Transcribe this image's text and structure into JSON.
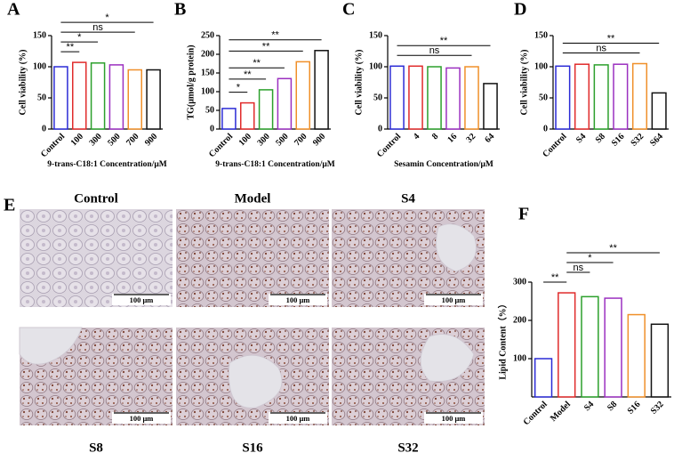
{
  "chart_data": [
    {
      "type": "bar",
      "label": "A",
      "ylabel": "Cell viability (%)",
      "xlabel": "9-trans-C18:1 Concentration/μM",
      "categories": [
        "Control",
        "100",
        "300",
        "500",
        "700",
        "900"
      ],
      "values": [
        100,
        107,
        106,
        103,
        95,
        95
      ],
      "colors": [
        "#2b2bd6",
        "#e02b2b",
        "#2ca02c",
        "#9b30c0",
        "#f0902a",
        "#111111"
      ],
      "ylim": [
        0,
        150
      ],
      "yticks": [
        0,
        50,
        100,
        150
      ],
      "annotations": [
        "**",
        "*",
        "ns",
        "*"
      ]
    },
    {
      "type": "bar",
      "label": "B",
      "ylabel": "TG(μmol/g protein)",
      "xlabel": "9-trans-C18:1 Concentration/μM",
      "categories": [
        "Control",
        "100",
        "300",
        "500",
        "700",
        "900"
      ],
      "values": [
        55,
        70,
        105,
        135,
        180,
        210
      ],
      "colors": [
        "#2b2bd6",
        "#e02b2b",
        "#2ca02c",
        "#9b30c0",
        "#f0902a",
        "#111111"
      ],
      "ylim": [
        0,
        250
      ],
      "yticks": [
        0,
        50,
        100,
        150,
        200,
        250
      ],
      "annotations": [
        "*",
        "**",
        "**",
        "**",
        "**"
      ]
    },
    {
      "type": "bar",
      "label": "C",
      "ylabel": "Cell viability (%)",
      "xlabel": "Sesamin Concentration/μM",
      "categories": [
        "Control",
        "4",
        "8",
        "16",
        "32",
        "64"
      ],
      "values": [
        101,
        101,
        100,
        98,
        100,
        73
      ],
      "colors": [
        "#2b2bd6",
        "#e02b2b",
        "#2ca02c",
        "#9b30c0",
        "#f0902a",
        "#111111"
      ],
      "ylim": [
        0,
        150
      ],
      "yticks": [
        0,
        50,
        100,
        150
      ],
      "annotations": [
        "ns",
        "**"
      ]
    },
    {
      "type": "bar",
      "label": "D",
      "ylabel": "Cell viability (%)",
      "categories": [
        "Control",
        "S4",
        "S8",
        "S16",
        "S32",
        "S64"
      ],
      "values": [
        101,
        104,
        103,
        104,
        105,
        58
      ],
      "colors": [
        "#2b2bd6",
        "#e02b2b",
        "#2ca02c",
        "#9b30c0",
        "#f0902a",
        "#111111"
      ],
      "ylim": [
        0,
        150
      ],
      "yticks": [
        0,
        50,
        100,
        150
      ],
      "annotations": [
        "ns",
        "**"
      ]
    },
    {
      "type": "bar",
      "label": "F",
      "ylabel": "Lipid Content（%）",
      "categories": [
        "Control",
        "Model",
        "S4",
        "S8",
        "S16",
        "S32"
      ],
      "values": [
        100,
        272,
        262,
        258,
        215,
        190
      ],
      "colors": [
        "#2b2bd6",
        "#e02b2b",
        "#2ca02c",
        "#9b30c0",
        "#f0902a",
        "#111111"
      ],
      "ylim": [
        0,
        300
      ],
      "yticks": [
        100,
        200,
        300
      ],
      "annotations": [
        "**",
        "ns",
        "*",
        "**"
      ]
    }
  ],
  "micrographs": {
    "label": "E",
    "panels": [
      {
        "title": "Control",
        "scale_bar": "100 μm"
      },
      {
        "title": "Model",
        "scale_bar": "100 μm"
      },
      {
        "title": "S4",
        "scale_bar": "100 μm"
      },
      {
        "title": "S8",
        "scale_bar": "100 μm"
      },
      {
        "title": "S16",
        "scale_bar": "100 μm"
      },
      {
        "title": "S32",
        "scale_bar": "100 μm"
      }
    ]
  }
}
